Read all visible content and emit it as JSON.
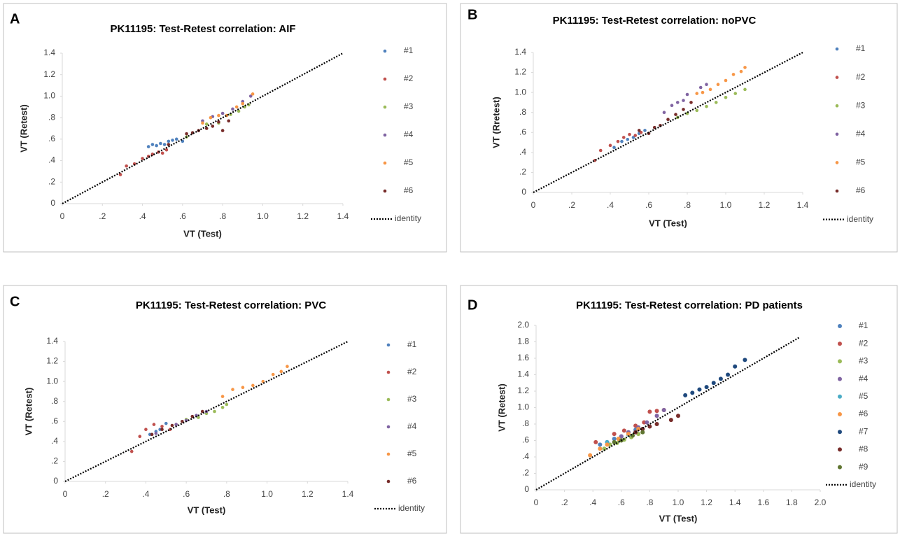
{
  "chart_data": [
    {
      "type": "scatter",
      "panel": "A",
      "title": "PK11195: Test-Retest correlation: AIF",
      "x_label": "VT (Test)",
      "y_label": "VT (Retest)",
      "xlim": [
        0,
        1.4
      ],
      "ylim": [
        0,
        1.4
      ],
      "xticks": [
        0,
        {
          "value": 0.2,
          "label": ".2"
        },
        {
          "value": 0.4,
          "label": ".4"
        },
        {
          "value": 0.6,
          "label": ".6"
        },
        {
          "value": 0.8,
          "label": ".8"
        },
        {
          "value": 1.0,
          "label": "1.0"
        },
        1.2,
        1.4
      ],
      "yticks": [
        0,
        {
          "value": 0.2,
          "label": ".2"
        },
        {
          "value": 0.4,
          "label": ".4"
        },
        {
          "value": 0.6,
          "label": ".6"
        },
        {
          "value": 0.8,
          "label": ".8"
        },
        {
          "value": 1.0,
          "label": "1.0"
        },
        1.2,
        1.4
      ],
      "series": [
        {
          "name": "#1",
          "color": "#4f81bd",
          "x": [
            0.43,
            0.45,
            0.47,
            0.49,
            0.51,
            0.53,
            0.55,
            0.57,
            0.6
          ],
          "values": [
            0.53,
            0.55,
            0.54,
            0.56,
            0.55,
            0.58,
            0.59,
            0.6,
            0.58
          ]
        },
        {
          "name": "#2",
          "color": "#c0504d",
          "x": [
            0.29,
            0.32,
            0.36,
            0.4,
            0.43,
            0.45,
            0.48,
            0.5,
            0.52
          ],
          "values": [
            0.27,
            0.35,
            0.37,
            0.42,
            0.44,
            0.46,
            0.48,
            0.47,
            0.5
          ]
        },
        {
          "name": "#3",
          "color": "#9bbb59",
          "x": [
            0.62,
            0.72,
            0.78,
            0.84,
            0.88,
            0.91,
            0.93
          ],
          "values": [
            0.62,
            0.74,
            0.75,
            0.83,
            0.86,
            0.9,
            0.92
          ]
        },
        {
          "name": "#4",
          "color": "#8064a2",
          "x": [
            0.7,
            0.75,
            0.8,
            0.85,
            0.9,
            0.94
          ],
          "values": [
            0.77,
            0.81,
            0.84,
            0.88,
            0.95,
            1.0
          ]
        },
        {
          "name": "#5",
          "color": "#f79646",
          "x": [
            0.7,
            0.74,
            0.78,
            0.82,
            0.87,
            0.9,
            0.95
          ],
          "values": [
            0.75,
            0.8,
            0.82,
            0.82,
            0.9,
            0.93,
            1.02
          ]
        },
        {
          "name": "#6",
          "color": "#772c2a",
          "x": [
            0.53,
            0.62,
            0.65,
            0.68,
            0.72,
            0.75,
            0.78,
            0.8,
            0.83
          ],
          "values": [
            0.55,
            0.65,
            0.66,
            0.68,
            0.7,
            0.72,
            0.76,
            0.68,
            0.77
          ]
        },
        {
          "name": "identity",
          "color": "#000000",
          "line": "dotted",
          "x": [
            0,
            1.4
          ],
          "values": [
            0,
            1.4
          ]
        }
      ]
    },
    {
      "type": "scatter",
      "panel": "B",
      "title": "PK11195: Test-Retest correlation: noPVC",
      "x_label": "VT (Test)",
      "y_label": "VT (Rretest)",
      "xlim": [
        0,
        1.4
      ],
      "ylim": [
        0,
        1.4
      ],
      "xticks": [
        0,
        {
          "value": 0.2,
          "label": ".2"
        },
        {
          "value": 0.4,
          "label": ".4"
        },
        {
          "value": 0.6,
          "label": ".6"
        },
        {
          "value": 0.8,
          "label": ".8"
        },
        {
          "value": 1.0,
          "label": "1.0"
        },
        1.2,
        1.4
      ],
      "yticks": [
        0,
        {
          "value": 0.2,
          "label": ".2"
        },
        {
          "value": 0.4,
          "label": ".4"
        },
        {
          "value": 0.6,
          "label": ".6"
        },
        {
          "value": 0.8,
          "label": ".8"
        },
        {
          "value": 1.0,
          "label": "1.0"
        },
        1.2,
        1.4
      ],
      "series": [
        {
          "name": "#1",
          "color": "#4f81bd",
          "x": [
            0.42,
            0.46,
            0.49,
            0.52,
            0.55,
            0.58
          ],
          "values": [
            0.45,
            0.51,
            0.53,
            0.55,
            0.59,
            0.62
          ]
        },
        {
          "name": "#2",
          "color": "#c0504d",
          "x": [
            0.32,
            0.35,
            0.4,
            0.44,
            0.47,
            0.5,
            0.53,
            0.56
          ],
          "values": [
            0.32,
            0.42,
            0.47,
            0.51,
            0.55,
            0.58,
            0.57,
            0.6
          ]
        },
        {
          "name": "#3",
          "color": "#9bbb59",
          "x": [
            0.75,
            0.8,
            0.85,
            0.9,
            0.95,
            1.0,
            1.05,
            1.1
          ],
          "values": [
            0.75,
            0.79,
            0.82,
            0.86,
            0.9,
            0.95,
            0.99,
            1.03
          ]
        },
        {
          "name": "#4",
          "color": "#8064a2",
          "x": [
            0.68,
            0.72,
            0.75,
            0.78,
            0.8,
            0.87,
            0.9
          ],
          "values": [
            0.8,
            0.87,
            0.9,
            0.92,
            0.98,
            1.05,
            1.08
          ]
        },
        {
          "name": "#5",
          "color": "#f79646",
          "x": [
            0.85,
            0.88,
            0.92,
            0.96,
            1.0,
            1.04,
            1.08,
            1.1
          ],
          "values": [
            0.99,
            1.0,
            1.03,
            1.08,
            1.12,
            1.18,
            1.21,
            1.25
          ]
        },
        {
          "name": "#6",
          "color": "#772c2a",
          "x": [
            0.55,
            0.6,
            0.63,
            0.66,
            0.7,
            0.74,
            0.78,
            0.82
          ],
          "values": [
            0.62,
            0.59,
            0.65,
            0.67,
            0.73,
            0.78,
            0.83,
            0.9
          ]
        },
        {
          "name": "identity",
          "color": "#000000",
          "line": "dotted",
          "x": [
            0,
            1.4
          ],
          "values": [
            0,
            1.4
          ]
        }
      ]
    },
    {
      "type": "scatter",
      "panel": "C",
      "title": "PK11195: Test-Retest correlation: PVC",
      "x_label": "VT (Test)",
      "y_label": "VT (Retest)",
      "xlim": [
        0,
        1.4
      ],
      "ylim": [
        0,
        1.4
      ],
      "xticks": [
        0,
        {
          "value": 0.2,
          "label": ".2"
        },
        {
          "value": 0.4,
          "label": ".4"
        },
        {
          "value": 0.6,
          "label": ".6"
        },
        {
          "value": 0.8,
          "label": ".8"
        },
        {
          "value": 1.0,
          "label": "1.0"
        },
        1.2,
        1.4
      ],
      "yticks": [
        0,
        {
          "value": 0.2,
          "label": ".2"
        },
        {
          "value": 0.4,
          "label": ".4"
        },
        {
          "value": 0.6,
          "label": ".6"
        },
        {
          "value": 0.8,
          "label": ".8"
        },
        {
          "value": 1.0,
          "label": "1.0"
        },
        1.2,
        1.4
      ],
      "series": [
        {
          "name": "#1",
          "color": "#4f81bd",
          "x": [
            0.42,
            0.45,
            0.47,
            0.5
          ],
          "values": [
            0.47,
            0.5,
            0.52,
            0.58
          ]
        },
        {
          "name": "#2",
          "color": "#c0504d",
          "x": [
            0.33,
            0.37,
            0.4,
            0.44,
            0.48,
            0.52,
            0.55
          ],
          "values": [
            0.3,
            0.45,
            0.52,
            0.57,
            0.55,
            0.52,
            0.57
          ]
        },
        {
          "name": "#3",
          "color": "#9bbb59",
          "x": [
            0.6,
            0.66,
            0.7,
            0.74,
            0.78,
            0.8
          ],
          "values": [
            0.62,
            0.64,
            0.68,
            0.7,
            0.74,
            0.77
          ]
        },
        {
          "name": "#4",
          "color": "#8064a2",
          "x": [
            0.45,
            0.55,
            0.6,
            0.65,
            0.7
          ],
          "values": [
            0.48,
            0.57,
            0.61,
            0.66,
            0.7
          ]
        },
        {
          "name": "#5",
          "color": "#f79646",
          "x": [
            0.78,
            0.83,
            0.88,
            0.93,
            0.98,
            1.03,
            1.07,
            1.1
          ],
          "values": [
            0.85,
            0.92,
            0.94,
            0.96,
            1.0,
            1.07,
            1.1,
            1.15
          ]
        },
        {
          "name": "#6",
          "color": "#772c2a",
          "x": [
            0.43,
            0.48,
            0.53,
            0.58,
            0.63,
            0.68
          ],
          "values": [
            0.47,
            0.52,
            0.56,
            0.6,
            0.65,
            0.7
          ]
        },
        {
          "name": "identity",
          "color": "#000000",
          "line": "dotted",
          "x": [
            0,
            1.4
          ],
          "values": [
            0,
            1.4
          ]
        }
      ]
    },
    {
      "type": "scatter",
      "panel": "D",
      "title": "PK11195: Test-Retest correlation: PD patients",
      "x_label": "VT (Test)",
      "y_label": "VT (Retest)",
      "xlim": [
        0,
        2.0
      ],
      "ylim": [
        0,
        2.0
      ],
      "xticks": [
        0,
        {
          "value": 0.2,
          "label": ".2"
        },
        {
          "value": 0.4,
          "label": ".4"
        },
        {
          "value": 0.6,
          "label": ".6"
        },
        {
          "value": 0.8,
          "label": ".8"
        },
        {
          "value": 1.0,
          "label": "1.0"
        },
        1.2,
        1.4,
        1.6,
        1.8,
        {
          "value": 2.0,
          "label": "2.0"
        }
      ],
      "yticks": [
        0,
        {
          "value": 0.2,
          "label": ".2"
        },
        {
          "value": 0.4,
          "label": ".4"
        },
        {
          "value": 0.6,
          "label": ".6"
        },
        {
          "value": 0.8,
          "label": ".8"
        },
        {
          "value": 1.0,
          "label": "1.0"
        },
        1.2,
        1.4,
        1.6,
        1.8,
        {
          "value": 2.0,
          "label": "2.0"
        }
      ],
      "series": [
        {
          "name": "#1",
          "color": "#4f81bd",
          "x": [
            0.45,
            0.5,
            0.55,
            0.6,
            0.65,
            0.7
          ],
          "values": [
            0.55,
            0.58,
            0.62,
            0.65,
            0.7,
            0.73
          ]
        },
        {
          "name": "#2",
          "color": "#c0504d",
          "x": [
            0.42,
            0.55,
            0.62,
            0.7,
            0.76,
            0.8,
            0.85,
            0.9
          ],
          "values": [
            0.58,
            0.68,
            0.72,
            0.78,
            0.82,
            0.95,
            0.96,
            0.97
          ]
        },
        {
          "name": "#3",
          "color": "#9bbb59",
          "x": [
            0.48,
            0.52,
            0.57,
            0.62,
            0.67,
            0.72
          ],
          "values": [
            0.5,
            0.55,
            0.57,
            0.61,
            0.64,
            0.68
          ]
        },
        {
          "name": "#4",
          "color": "#8064a2",
          "x": [
            0.6,
            0.65,
            0.72,
            0.78,
            0.85,
            0.9
          ],
          "values": [
            0.65,
            0.7,
            0.76,
            0.82,
            0.9,
            0.97
          ]
        },
        {
          "name": "#5",
          "color": "#4bacc6",
          "x": [
            0.5,
            0.58,
            0.65,
            0.7,
            0.75
          ],
          "values": [
            0.58,
            0.62,
            0.67,
            0.7,
            0.74
          ]
        },
        {
          "name": "#6",
          "color": "#f79646",
          "x": [
            0.38,
            0.45,
            0.5,
            0.58,
            0.65,
            0.72
          ],
          "values": [
            0.42,
            0.5,
            0.55,
            0.62,
            0.68,
            0.74
          ]
        },
        {
          "name": "#7",
          "color": "#1f497d",
          "x": [
            1.05,
            1.1,
            1.15,
            1.2,
            1.25,
            1.3,
            1.35,
            1.4,
            1.47
          ],
          "values": [
            1.15,
            1.18,
            1.22,
            1.25,
            1.3,
            1.35,
            1.4,
            1.5,
            1.58
          ]
        },
        {
          "name": "#8",
          "color": "#772c2a",
          "x": [
            0.7,
            0.75,
            0.8,
            0.85,
            0.95,
            1.0
          ],
          "values": [
            0.7,
            0.74,
            0.77,
            0.8,
            0.85,
            0.9
          ]
        },
        {
          "name": "#9",
          "color": "#5f7530",
          "x": [
            0.55,
            0.6,
            0.68,
            0.75
          ],
          "values": [
            0.58,
            0.6,
            0.66,
            0.7
          ]
        },
        {
          "name": "identity",
          "color": "#000000",
          "line": "dotted",
          "x": [
            0,
            1.85
          ],
          "values": [
            0,
            1.85
          ]
        }
      ]
    }
  ]
}
